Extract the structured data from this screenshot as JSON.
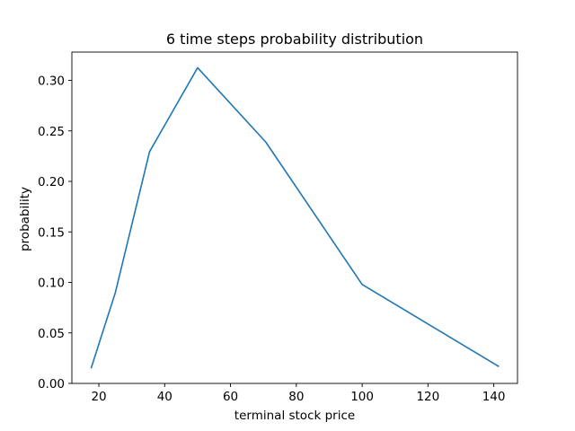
{
  "chart_data": {
    "type": "line",
    "title": "6 time steps probability distribution",
    "xlabel": "terminal stock price",
    "ylabel": "probability",
    "xlim": [
      11.8,
      147.2
    ],
    "ylim": [
      0.0,
      0.328
    ],
    "x_ticks": [
      20,
      40,
      60,
      80,
      100,
      120,
      140
    ],
    "x_tick_labels": [
      "20",
      "40",
      "60",
      "80",
      "100",
      "120",
      "140"
    ],
    "y_ticks": [
      0.0,
      0.05,
      0.1,
      0.15,
      0.2,
      0.25,
      0.3
    ],
    "y_tick_labels": [
      "0.00",
      "0.05",
      "0.10",
      "0.15",
      "0.20",
      "0.25",
      "0.30"
    ],
    "grid": false,
    "legend": "none",
    "series": [
      {
        "color": "#1f77b4",
        "x": [
          17.7,
          25.0,
          35.4,
          50.0,
          70.7,
          100.0,
          141.4
        ],
        "y": [
          0.0156,
          0.0898,
          0.2294,
          0.3125,
          0.239,
          0.0979,
          0.017
        ]
      }
    ]
  }
}
